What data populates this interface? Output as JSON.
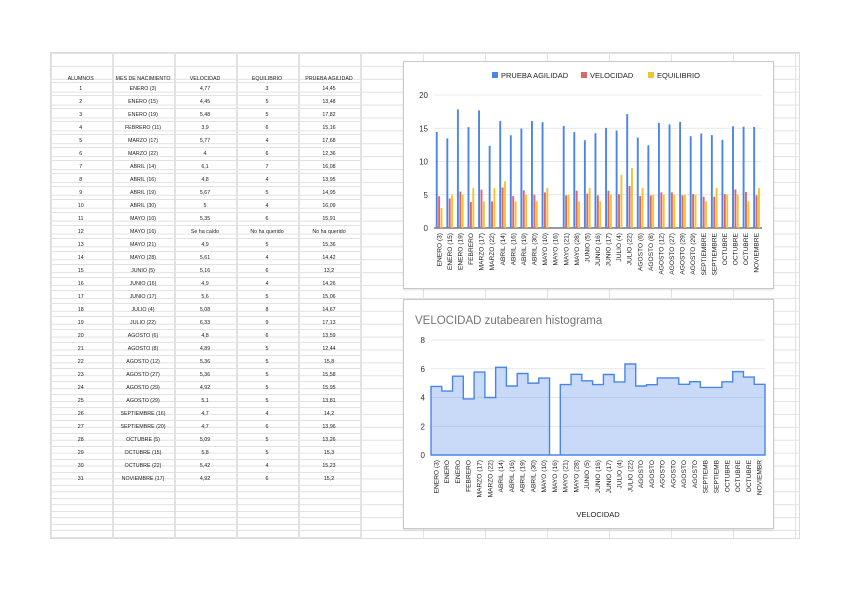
{
  "table": {
    "headers": [
      "ALUMNOS",
      "MES DE NACIMIENTO",
      "VELOCIDAD",
      "EQUILIBRIO",
      "PRUEBA AGILIDAD"
    ],
    "rows": [
      [
        "1",
        "ENERO (3)",
        "4,77",
        "3",
        "14,45"
      ],
      [
        "2",
        "ENERO (15)",
        "4,45",
        "5",
        "13,48"
      ],
      [
        "3",
        "ENERO (19)",
        "5,48",
        "5",
        "17,82"
      ],
      [
        "4",
        "FEBRERO (11)",
        "3,9",
        "6",
        "15,16"
      ],
      [
        "5",
        "MARZO (17)",
        "5,77",
        "4",
        "17,68"
      ],
      [
        "6",
        "MARZO (22)",
        "4",
        "6",
        "12,36"
      ],
      [
        "7",
        "ABRIL (14)",
        "6,1",
        "7",
        "16,08"
      ],
      [
        "8",
        "ABRIL (16)",
        "4,8",
        "4",
        "13,95"
      ],
      [
        "9",
        "ABRIL (19)",
        "5,67",
        "5",
        "14,95"
      ],
      [
        "10",
        "ABRIL (30)",
        "5",
        "4",
        "16,09"
      ],
      [
        "11",
        "MAYO (10)",
        "5,35",
        "6",
        "15,91"
      ],
      [
        "12",
        "MAYO (16)",
        "Se ha caído",
        "No ha querido",
        "No ha querido"
      ],
      [
        "13",
        "MAYO (21)",
        "4,9",
        "5",
        "15,36"
      ],
      [
        "14",
        "MAYO (28)",
        "5,61",
        "4",
        "14,42"
      ],
      [
        "15",
        "JUNIO (5)",
        "5,16",
        "6",
        "13,2"
      ],
      [
        "16",
        "JUNIO (16)",
        "4,9",
        "4",
        "14,26"
      ],
      [
        "17",
        "JUNIO (17)",
        "5,6",
        "5",
        "15,06"
      ],
      [
        "18",
        "JULIO (4)",
        "5,08",
        "8",
        "14,67"
      ],
      [
        "19",
        "JULIO (22)",
        "6,33",
        "9",
        "17,13"
      ],
      [
        "20",
        "AGOSTO (6)",
        "4,8",
        "6",
        "13,59"
      ],
      [
        "21",
        "AGOSTO (8)",
        "4,89",
        "5",
        "12,44"
      ],
      [
        "22",
        "AGOSTO (12)",
        "5,36",
        "5",
        "15,8"
      ],
      [
        "23",
        "AGOSTO (27)",
        "5,36",
        "5",
        "15,58"
      ],
      [
        "24",
        "AGOSTO (29)",
        "4,92",
        "5",
        "15,95"
      ],
      [
        "25",
        "AGOSTO (29)",
        "5,1",
        "5",
        "13,81"
      ],
      [
        "26",
        "SEPTIEMBRE (16)",
        "4,7",
        "4",
        "14,2"
      ],
      [
        "27",
        "SEPTIEMBRE (20)",
        "4,7",
        "6",
        "13,96"
      ],
      [
        "28",
        "OCTUBRE (5)",
        "5,09",
        "5",
        "13,26"
      ],
      [
        "29",
        "OCTUBRE (15)",
        "5,8",
        "5",
        "15,3"
      ],
      [
        "30",
        "OCTUBRE (22)",
        "5,42",
        "4",
        "15,23"
      ],
      [
        "31",
        "NOVIEMBRE (17)",
        "4,92",
        "6",
        "15,2"
      ]
    ]
  },
  "chart_data": [
    {
      "type": "bar",
      "title": "",
      "legend_position": "top",
      "categories": [
        "ENERO (3)",
        "ENERO (15)",
        "ENERO (19)",
        "FEBRERO",
        "MARZO (17)",
        "MARZO (22)",
        "ABRIL (14)",
        "ABRIL (16)",
        "ABRIL (19)",
        "ABRIL (30)",
        "MAYO (10)",
        "MAYO (16)",
        "MAYO (21)",
        "MAYO (28)",
        "JUNIO (5)",
        "JUNIO (16)",
        "JUNIO (17)",
        "JULIO (4)",
        "JULIO (22)",
        "AGOSTO (6)",
        "AGOSTO (8)",
        "AGOSTO (12)",
        "AGOSTO (27)",
        "AGOSTO (29)",
        "AGOSTO (29)",
        "SEPTIEMBRE",
        "SEPTIEMBRE",
        "OCTUBRE",
        "OCTUBRE",
        "OCTUBRE",
        "NOVIEMBRE"
      ],
      "series": [
        {
          "name": "PRUEBA AGILIDAD",
          "color": "#4a86e8",
          "values": [
            14.45,
            13.48,
            17.82,
            15.16,
            17.68,
            12.36,
            16.08,
            13.95,
            14.95,
            16.09,
            15.91,
            null,
            15.36,
            14.42,
            13.2,
            14.26,
            15.06,
            14.67,
            17.13,
            13.59,
            12.44,
            15.8,
            15.58,
            15.95,
            13.81,
            14.2,
            13.96,
            13.26,
            15.3,
            15.23,
            15.2
          ]
        },
        {
          "name": "VELOCIDAD",
          "color": "#e06666",
          "values": [
            4.77,
            4.45,
            5.48,
            3.9,
            5.77,
            4,
            6.1,
            4.8,
            5.67,
            5,
            5.35,
            null,
            4.9,
            5.61,
            5.16,
            4.9,
            5.6,
            5.08,
            6.33,
            4.8,
            4.89,
            5.36,
            5.36,
            4.92,
            5.1,
            4.7,
            4.7,
            5.09,
            5.8,
            5.42,
            4.92
          ]
        },
        {
          "name": "EQUILIBRIO",
          "color": "#f1c232",
          "values": [
            3,
            5,
            5,
            6,
            4,
            6,
            7,
            4,
            5,
            4,
            6,
            null,
            5,
            4,
            6,
            4,
            5,
            8,
            9,
            6,
            5,
            5,
            5,
            5,
            5,
            4,
            6,
            5,
            5,
            4,
            6
          ]
        }
      ],
      "ylim": [
        0,
        20
      ],
      "yticks": [
        "0",
        "5",
        "10",
        "15",
        "20"
      ],
      "grid": true
    },
    {
      "type": "area",
      "title": "VELOCIDAD zutabearen histograma",
      "xlabel": "VELOCIDAD",
      "categories": [
        "ENERO (3)",
        "ENERO",
        "ENERO",
        "FEBRERO",
        "MARZO (17)",
        "MARZO (22)",
        "ABRIL (14)",
        "ABRIL (16)",
        "ABRIL (19)",
        "ABRIL (30)",
        "MAYO (10)",
        "MAYO (16)",
        "MAYO (21)",
        "MAYO (28)",
        "JUNIO (5)",
        "JUNIO (16)",
        "JUNIO (17)",
        "JULIO (4)",
        "JULIO (22)",
        "AGOSTO",
        "AGOSTO",
        "AGOSTO",
        "AGOSTO",
        "AGOSTO",
        "AGOSTO",
        "SEPTIEMB",
        "SEPTIEMB",
        "OCTUBRE",
        "OCTUBRE",
        "OCTUBRE",
        "NOVIEMBR"
      ],
      "values": [
        4.77,
        4.45,
        5.48,
        3.9,
        5.77,
        4,
        6.1,
        4.8,
        5.67,
        5,
        5.35,
        0,
        4.9,
        5.61,
        5.16,
        4.9,
        5.6,
        5.08,
        6.33,
        4.8,
        4.89,
        5.36,
        5.36,
        4.92,
        5.1,
        4.7,
        4.7,
        5.09,
        5.8,
        5.42,
        4.92
      ],
      "color": "#4a86e8",
      "ylim": [
        0,
        8
      ],
      "yticks": [
        "0",
        "2",
        "4",
        "6",
        "8"
      ],
      "grid": true
    }
  ]
}
